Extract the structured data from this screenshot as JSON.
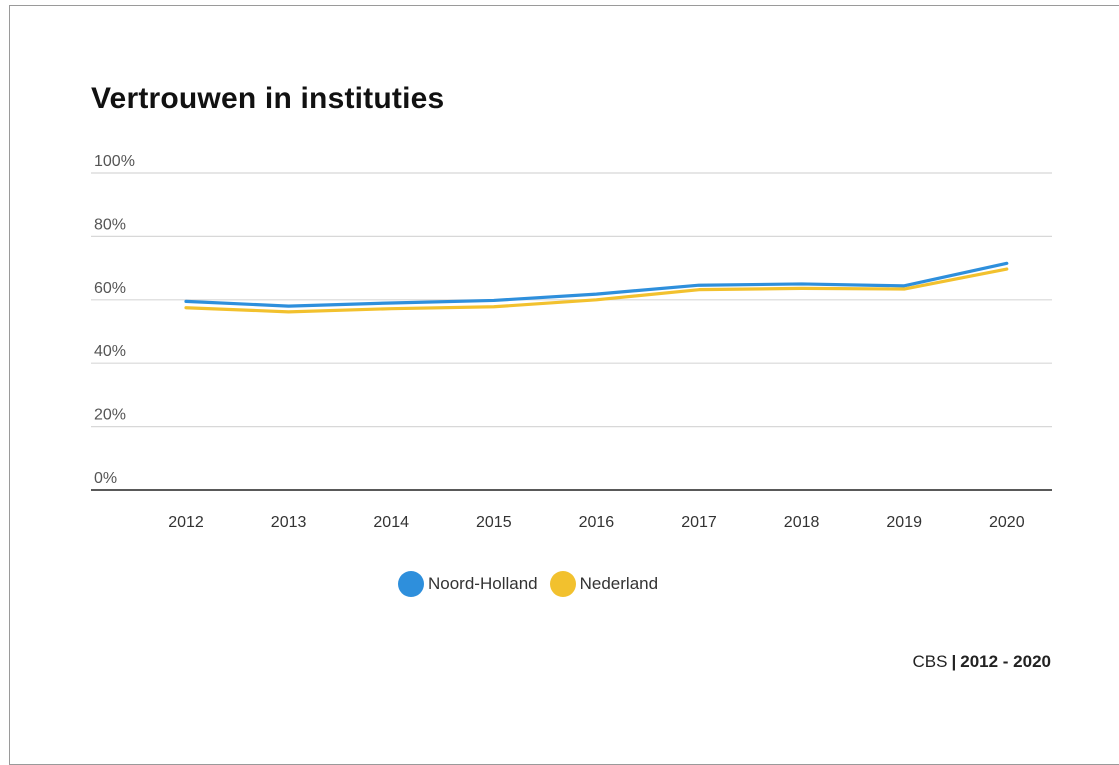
{
  "chart_data": {
    "type": "line",
    "title": "Vertrouwen in instituties",
    "xlabel": "",
    "ylabel": "",
    "categories": [
      "2012",
      "2013",
      "2014",
      "2015",
      "2016",
      "2017",
      "2018",
      "2019",
      "2020"
    ],
    "y_ticks": [
      "0%",
      "20%",
      "40%",
      "60%",
      "80%",
      "100%"
    ],
    "ylim": [
      0,
      100
    ],
    "grid": true,
    "legend_position": "bottom",
    "series": [
      {
        "name": "Noord-Holland",
        "color": "#2e8fdc",
        "values": [
          59.5,
          58.0,
          59.0,
          59.8,
          61.8,
          64.6,
          65.0,
          64.4,
          71.5
        ]
      },
      {
        "name": "Nederland",
        "color": "#f2c12e",
        "values": [
          57.5,
          56.2,
          57.2,
          57.8,
          60.0,
          63.2,
          63.6,
          63.4,
          69.7
        ]
      }
    ]
  },
  "source": {
    "label": "CBS",
    "separator": "|",
    "range": "2012 - 2020"
  }
}
